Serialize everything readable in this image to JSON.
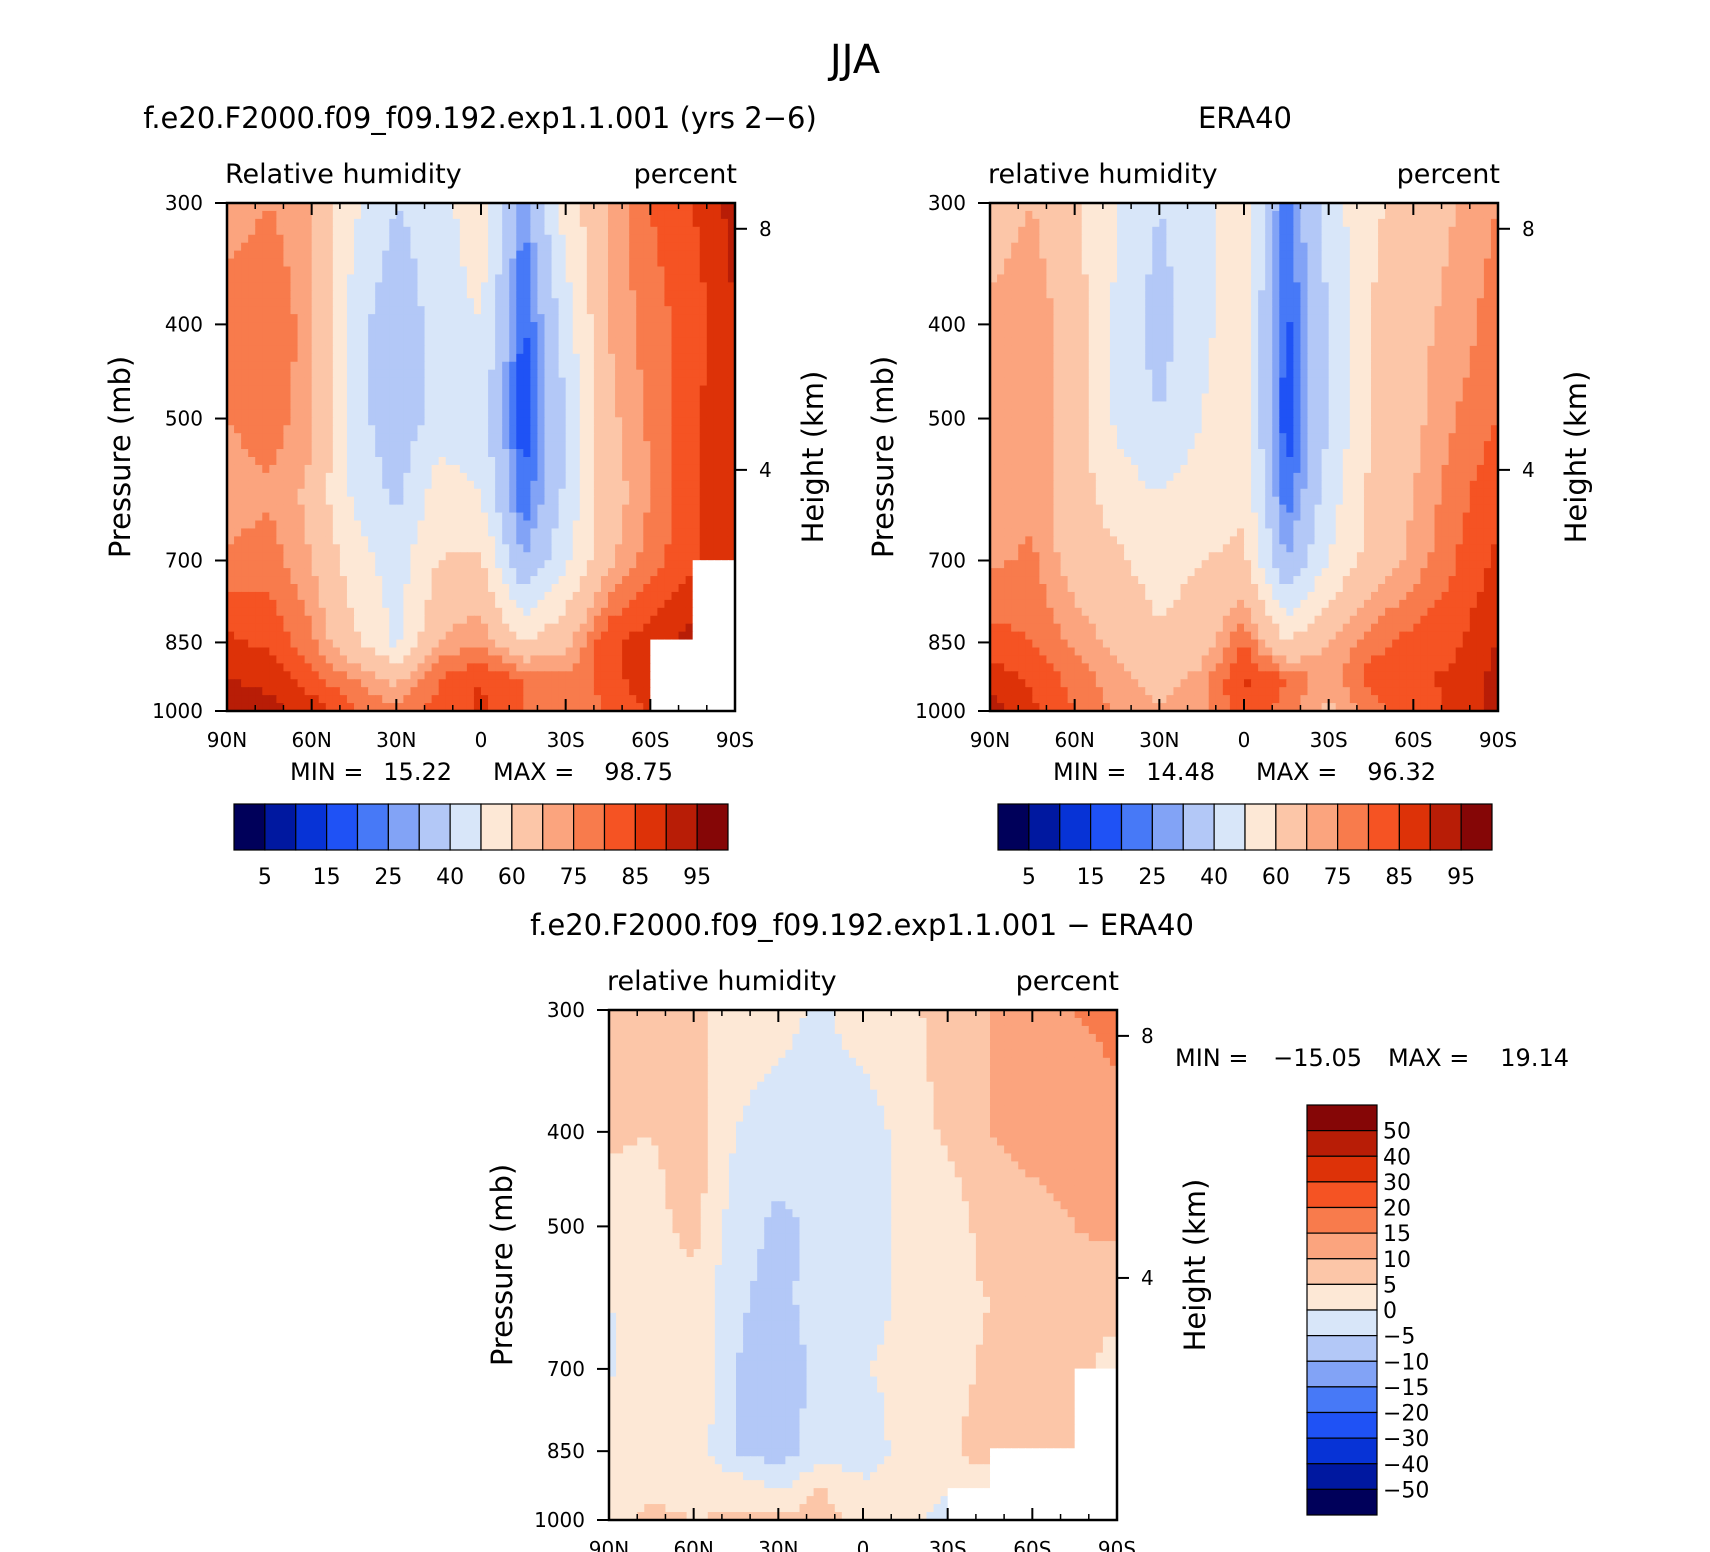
{
  "figure": {
    "title": "JJA"
  },
  "colors": {
    "abs_levels": [
      "#00005a",
      "#0018a0",
      "#0733d6",
      "#1f52f5",
      "#4779f7",
      "#82a3f6",
      "#b3c8f7",
      "#d8e6f9",
      "#fde8d6",
      "#fcc6a8",
      "#fba47e",
      "#f87b4c",
      "#f55323",
      "#dd3208",
      "#b81d06",
      "#850606"
    ],
    "diff_levels": [
      "#00005a",
      "#0018a0",
      "#0733d6",
      "#1f52f5",
      "#4779f7",
      "#82a3f6",
      "#b3c8f7",
      "#d8e6f9",
      "#fde8d6",
      "#fcc6a8",
      "#fba47e",
      "#f87b4c",
      "#f55323",
      "#dd3208",
      "#b81d06",
      "#850606"
    ],
    "missing": "#ffffff"
  },
  "chart_data": [
    {
      "type": "heatmap",
      "title": "f.e20.F2000.f09_f09.192.exp1.1.001 (yrs 2-6)",
      "left_label": "Relative humidity",
      "right_label": "percent",
      "ylabel": "Pressure (mb)",
      "y2label": "Height (km)",
      "x_ticks": [
        "90N",
        "60N",
        "30N",
        "0",
        "30S",
        "60S",
        "90S"
      ],
      "x_tick_values": [
        90,
        60,
        30,
        0,
        -30,
        -60,
        -90
      ],
      "y_ticks": [
        300,
        400,
        500,
        700,
        850,
        1000
      ],
      "y_scale": "log",
      "y2_ticks": [
        "8",
        "4"
      ],
      "y2_tick_values": [
        8,
        4
      ],
      "min_label": "MIN =",
      "min_value": "15.22",
      "max_label": "MAX =",
      "max_value": "98.75",
      "levels": [
        5,
        10,
        15,
        20,
        25,
        30,
        40,
        50,
        60,
        70,
        75,
        80,
        85,
        90,
        95
      ],
      "colorbar_labels": [
        "5",
        "15",
        "25",
        "40",
        "60",
        "75",
        "85",
        "95"
      ],
      "lat": [
        90,
        75,
        60,
        45,
        30,
        15,
        0,
        -15,
        -30,
        -45,
        -60,
        -75,
        -90
      ],
      "pressure": [
        300,
        400,
        500,
        600,
        700,
        850,
        925,
        1000
      ],
      "values": [
        [
          72,
          75,
          70,
          52,
          40,
          45,
          58,
          25,
          55,
          70,
          80,
          85,
          92
        ],
        [
          78,
          80,
          72,
          45,
          32,
          45,
          50,
          18,
          45,
          70,
          78,
          82,
          90
        ],
        [
          75,
          78,
          72,
          45,
          32,
          45,
          45,
          16,
          40,
          68,
          76,
          84,
          90
        ],
        [
          72,
          74,
          68,
          48,
          38,
          55,
          50,
          20,
          42,
          66,
          75,
          84,
          90
        ],
        [
          76,
          78,
          70,
          55,
          45,
          60,
          62,
          30,
          48,
          68,
          78,
          84,
          88
        ],
        [
          86,
          84,
          76,
          62,
          48,
          70,
          75,
          60,
          68,
          84,
          88,
          92,
          null
        ],
        [
          90,
          88,
          82,
          75,
          68,
          80,
          85,
          80,
          76,
          82,
          90,
          null,
          null
        ],
        [
          96,
          92,
          88,
          80,
          76,
          82,
          86,
          80,
          78,
          80,
          86,
          null,
          null
        ]
      ]
    },
    {
      "type": "heatmap",
      "title": "ERA40",
      "left_label": "relative humidity",
      "right_label": "percent",
      "ylabel": "Pressure (mb)",
      "y2label": "Height (km)",
      "x_ticks": [
        "90N",
        "60N",
        "30N",
        "0",
        "30S",
        "60S",
        "90S"
      ],
      "x_tick_values": [
        90,
        60,
        30,
        0,
        -30,
        -60,
        -90
      ],
      "y_ticks": [
        300,
        400,
        500,
        700,
        850,
        1000
      ],
      "y_scale": "log",
      "y2_ticks": [
        "8",
        "4"
      ],
      "y2_tick_values": [
        8,
        4
      ],
      "min_label": "MIN =",
      "min_value": "14.48",
      "max_label": "MAX =",
      "max_value": "96.32",
      "levels": [
        5,
        10,
        15,
        20,
        25,
        30,
        40,
        50,
        60,
        70,
        75,
        80,
        85,
        90,
        95
      ],
      "colorbar_labels": [
        "5",
        "15",
        "25",
        "40",
        "60",
        "75",
        "85",
        "95"
      ],
      "lat": [
        90,
        75,
        60,
        45,
        30,
        15,
        0,
        -15,
        -30,
        -45,
        -60,
        -75,
        -90
      ],
      "pressure": [
        300,
        400,
        500,
        600,
        700,
        850,
        925,
        1000
      ],
      "values": [
        [
          65,
          70,
          62,
          50,
          40,
          48,
          55,
          22,
          45,
          58,
          65,
          70,
          75
        ],
        [
          72,
          75,
          65,
          48,
          35,
          48,
          55,
          18,
          40,
          60,
          68,
          72,
          78
        ],
        [
          72,
          75,
          65,
          48,
          40,
          50,
          55,
          16,
          40,
          60,
          68,
          75,
          80
        ],
        [
          70,
          74,
          65,
          55,
          50,
          55,
          58,
          20,
          45,
          62,
          70,
          78,
          84
        ],
        [
          74,
          76,
          66,
          62,
          55,
          60,
          62,
          30,
          50,
          64,
          72,
          80,
          86
        ],
        [
          82,
          80,
          74,
          68,
          62,
          66,
          80,
          60,
          70,
          78,
          82,
          84,
          90
        ],
        [
          88,
          84,
          78,
          72,
          68,
          72,
          86,
          80,
          72,
          82,
          84,
          86,
          92
        ],
        [
          92,
          86,
          80,
          74,
          70,
          74,
          84,
          78,
          68,
          78,
          82,
          86,
          92
        ]
      ]
    },
    {
      "type": "heatmap",
      "title": "f.e20.F2000.f09_f09.192.exp1.1.001 - ERA40",
      "left_label": "relative humidity",
      "right_label": "percent",
      "ylabel": "Pressure (mb)",
      "y2label": "Height (km)",
      "x_ticks": [
        "90N",
        "60N",
        "30N",
        "0",
        "30S",
        "60S",
        "90S"
      ],
      "x_tick_values": [
        90,
        60,
        30,
        0,
        -30,
        -60,
        -90
      ],
      "y_ticks": [
        300,
        400,
        500,
        700,
        850,
        1000
      ],
      "y_scale": "log",
      "y2_ticks": [
        "8",
        "4"
      ],
      "y2_tick_values": [
        8,
        4
      ],
      "min_label": "MIN =",
      "min_value": "-15.05",
      "max_label": "MAX =",
      "max_value": "19.14",
      "levels": [
        -50,
        -40,
        -30,
        -20,
        -15,
        -10,
        -5,
        0,
        5,
        10,
        15,
        20,
        30,
        40,
        50
      ],
      "colorbar_labels": [
        "50",
        "40",
        "30",
        "20",
        "15",
        "10",
        "5",
        "0",
        "-5",
        "-10",
        "-15",
        "-20",
        "-30",
        "-40",
        "-50"
      ],
      "lat": [
        90,
        75,
        60,
        45,
        30,
        15,
        0,
        -15,
        -30,
        -45,
        -60,
        -75,
        -90
      ],
      "pressure": [
        300,
        400,
        500,
        600,
        700,
        850,
        925,
        1000
      ],
      "values": [
        [
          6,
          5,
          6,
          3,
          2,
          -1,
          3,
          3,
          8,
          10,
          13,
          15,
          17
        ],
        [
          6,
          5,
          8,
          0,
          -3,
          -2,
          -3,
          2,
          6,
          10,
          11,
          11,
          13
        ],
        [
          2,
          3,
          7,
          -3,
          -6,
          -4,
          -3,
          1,
          1,
          8,
          9,
          10,
          11
        ],
        [
          0,
          2,
          3,
          -4,
          -7,
          -2,
          -2,
          1,
          3,
          5,
          6,
          8,
          7
        ],
        [
          -1,
          3,
          5,
          -5,
          -9,
          -3,
          0,
          1,
          3,
          6,
          7,
          7,
          2
        ],
        [
          4,
          5,
          3,
          -5,
          -8,
          -2,
          -3,
          2,
          4,
          8,
          7,
          5,
          null
        ],
        [
          3,
          4,
          3,
          3,
          -1,
          5,
          1,
          2,
          1,
          2,
          null,
          null,
          null
        ],
        [
          4,
          6,
          5,
          6,
          6,
          8,
          2,
          2,
          -2,
          null,
          null,
          null,
          null
        ]
      ]
    }
  ]
}
